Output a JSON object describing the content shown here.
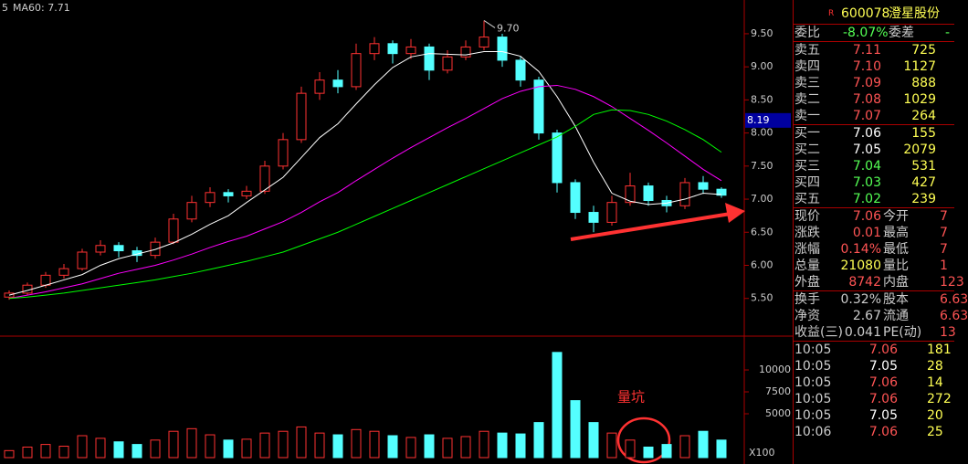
{
  "chart_data": {
    "type": "candlestick",
    "header_left": "5",
    "ma_label": "MA60: 7.71",
    "peak_label": "9.70",
    "peak_value": 9.7,
    "cursor_price": 8.19,
    "volume_annotation": "量坑",
    "volume_unit": "X100",
    "ylim": [
      4.93,
      10.01
    ],
    "yticks": [
      {
        "value": 5.5,
        "label": "5.50"
      },
      {
        "value": 6,
        "label": "6.00"
      },
      {
        "value": 6.5,
        "label": "6.50"
      },
      {
        "value": 7,
        "label": "7.00"
      },
      {
        "value": 7.5,
        "label": "7.50"
      },
      {
        "value": 8,
        "label": "8.00"
      },
      {
        "value": 8.5,
        "label": "8.50"
      },
      {
        "value": 9,
        "label": "9.00"
      },
      {
        "value": 9.5,
        "label": "9.50"
      }
    ],
    "vol_ylim": [
      0,
      13650
    ],
    "vol_yticks": [
      5000,
      7500,
      10000
    ],
    "up_color": "#ff3232",
    "down_color": "#54ffff",
    "open": [
      5.52,
      5.58,
      5.7,
      5.85,
      5.95,
      6.2,
      6.3,
      6.22,
      6.15,
      6.35,
      6.7,
      6.95,
      7.1,
      7.05,
      7.12,
      7.5,
      7.9,
      8.6,
      8.8,
      8.7,
      9.2,
      9.35,
      9.2,
      9.3,
      8.95,
      9.15,
      9.3,
      9.45,
      9.1,
      8.8,
      8.0,
      7.25,
      6.8,
      6.65,
      6.95,
      7.2,
      6.98,
      6.9,
      7.25,
      7.15
    ],
    "close": [
      5.58,
      5.7,
      5.85,
      5.95,
      6.2,
      6.3,
      6.22,
      6.15,
      6.35,
      6.7,
      6.95,
      7.1,
      7.05,
      7.12,
      7.5,
      7.9,
      8.6,
      8.8,
      8.7,
      9.2,
      9.35,
      9.2,
      9.3,
      8.95,
      9.15,
      9.3,
      9.45,
      9.1,
      8.8,
      8.0,
      7.25,
      6.8,
      6.65,
      6.95,
      7.2,
      6.98,
      6.9,
      7.25,
      7.15,
      7.06
    ],
    "high": [
      5.62,
      5.74,
      5.9,
      6.02,
      6.25,
      6.38,
      6.35,
      6.28,
      6.42,
      6.78,
      7.05,
      7.18,
      7.15,
      7.2,
      7.58,
      8.0,
      8.7,
      8.92,
      8.95,
      9.35,
      9.45,
      9.4,
      9.42,
      9.35,
      9.25,
      9.4,
      9.7,
      9.5,
      9.15,
      8.85,
      8.05,
      7.3,
      6.9,
      7.05,
      7.4,
      7.25,
      7.05,
      7.32,
      7.35,
      7.18
    ],
    "low": [
      5.48,
      5.55,
      5.66,
      5.8,
      5.92,
      6.15,
      6.12,
      6.05,
      6.1,
      6.32,
      6.65,
      6.88,
      6.95,
      7.0,
      7.08,
      7.45,
      7.85,
      8.5,
      8.6,
      8.65,
      9.1,
      9.05,
      9.12,
      8.8,
      8.9,
      9.1,
      9.25,
      9.0,
      8.7,
      7.9,
      7.1,
      6.7,
      6.5,
      6.6,
      6.9,
      6.9,
      6.8,
      6.85,
      7.08,
      7.02
    ],
    "volume": [
      800,
      1200,
      1500,
      1300,
      2500,
      2200,
      1800,
      1500,
      2000,
      3000,
      3300,
      2600,
      2000,
      2100,
      2800,
      3000,
      3500,
      2800,
      2600,
      3200,
      3000,
      2500,
      2300,
      2600,
      2200,
      2400,
      3000,
      2800,
      2700,
      4000,
      12000,
      6500,
      4000,
      2800,
      2000,
      1200,
      1500,
      2500,
      3000,
      2000
    ],
    "ma_lines": [
      {
        "color": "#ffffff",
        "values": [
          5.55,
          5.62,
          5.7,
          5.78,
          5.86,
          6.0,
          6.1,
          6.17,
          6.24,
          6.34,
          6.47,
          6.62,
          6.75,
          6.95,
          7.14,
          7.33,
          7.63,
          7.93,
          8.14,
          8.44,
          8.73,
          8.99,
          9.15,
          9.2,
          9.19,
          9.18,
          9.23,
          9.23,
          9.16,
          8.93,
          8.55,
          8.1,
          7.56,
          7.09,
          6.97,
          6.92,
          6.94,
          7.0,
          7.09,
          7.07
        ]
      },
      {
        "color": "#ff00ff",
        "values": [
          5.5,
          5.55,
          5.6,
          5.66,
          5.72,
          5.8,
          5.88,
          5.94,
          6.0,
          6.08,
          6.17,
          6.27,
          6.36,
          6.44,
          6.55,
          6.66,
          6.8,
          6.96,
          7.1,
          7.28,
          7.45,
          7.62,
          7.78,
          7.93,
          8.08,
          8.22,
          8.37,
          8.52,
          8.63,
          8.7,
          8.72,
          8.66,
          8.55,
          8.4,
          8.22,
          8.04,
          7.85,
          7.65,
          7.45,
          7.28
        ]
      },
      {
        "color": "#00ff00",
        "values": [
          5.5,
          5.52,
          5.55,
          5.58,
          5.62,
          5.66,
          5.7,
          5.74,
          5.78,
          5.83,
          5.88,
          5.94,
          6.0,
          6.06,
          6.13,
          6.2,
          6.3,
          6.4,
          6.5,
          6.62,
          6.74,
          6.86,
          6.98,
          7.1,
          7.22,
          7.34,
          7.46,
          7.58,
          7.7,
          7.82,
          7.94,
          8.1,
          8.28,
          8.35,
          8.34,
          8.28,
          8.18,
          8.05,
          7.9,
          7.71
        ]
      }
    ]
  },
  "quote": {
    "flag": "R",
    "code": "600078",
    "name": "澄星股份",
    "ratio": [
      "委比",
      "-8.07%",
      "委差",
      "-"
    ],
    "sell": [
      [
        "卖五",
        "7.11",
        "725"
      ],
      [
        "卖四",
        "7.10",
        "1127"
      ],
      [
        "卖三",
        "7.09",
        "888"
      ],
      [
        "卖二",
        "7.08",
        "1029"
      ],
      [
        "卖一",
        "7.07",
        "264"
      ]
    ],
    "buy": [
      [
        "买一",
        "7.06",
        "155"
      ],
      [
        "买二",
        "7.05",
        "2079"
      ],
      [
        "买三",
        "7.04",
        "531"
      ],
      [
        "买四",
        "7.03",
        "427"
      ],
      [
        "买五",
        "7.02",
        "239"
      ]
    ],
    "stats": [
      [
        "现价",
        "7.06",
        "今开",
        "7"
      ],
      [
        "涨跌",
        "0.01",
        "最高",
        "7"
      ],
      [
        "涨幅",
        "0.14%",
        "最低",
        "7"
      ],
      [
        "总量",
        "21080",
        "量比",
        "1"
      ],
      [
        "外盘",
        "8742",
        "内盘",
        "123"
      ],
      [
        "换手",
        "0.32%",
        "股本",
        "6.63"
      ],
      [
        "净资",
        "2.67",
        "流通",
        "6.63"
      ],
      [
        "收益(三)",
        "0.041",
        "PE(动)",
        "13"
      ]
    ],
    "ticks": [
      [
        "10:05",
        "7.06",
        "181"
      ],
      [
        "10:05",
        "7.05",
        "28"
      ],
      [
        "10:05",
        "7.06",
        "14"
      ],
      [
        "10:05",
        "7.06",
        "272"
      ],
      [
        "10:05",
        "7.05",
        "20"
      ],
      [
        "10:06",
        "7.06",
        "25"
      ]
    ]
  }
}
